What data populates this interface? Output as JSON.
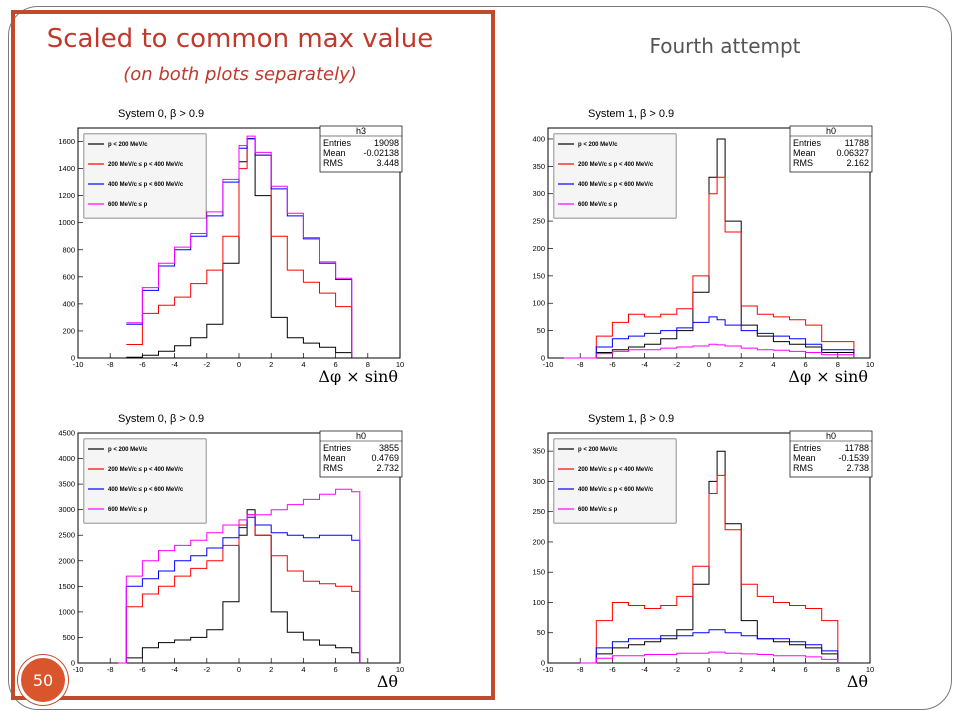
{
  "slide": {
    "left_title": "Scaled to common max value",
    "left_subtitle": "(on both plots separately)",
    "right_title": "Fourth attempt",
    "slide_number": "50"
  },
  "colors": {
    "accent": "#c14a2b",
    "series": [
      "#000000",
      "#ff0000",
      "#0000ff",
      "#ff00ff"
    ]
  },
  "chart_data": [
    {
      "type": "line",
      "title": "System 0, β > 0.9",
      "xlabel": "Δφ × sinθ",
      "ylabel": "",
      "xlim": [
        -10,
        10
      ],
      "ylim": [
        0,
        1700
      ],
      "xticks": [
        -10,
        -8,
        -6,
        -4,
        -2,
        0,
        2,
        4,
        6,
        8,
        10
      ],
      "yticks": [
        0,
        200,
        400,
        600,
        800,
        1000,
        1200,
        1400,
        1600
      ],
      "stats": {
        "name": "h3",
        "entries": "19098",
        "mean": "-0.02138",
        "rms": "3.448"
      },
      "legend": [
        "p < 200 MeV/c",
        "200 MeV/c ≤ p < 400 MeV/c",
        "400 MeV/c ≤ p < 600 MeV/c",
        "600 MeV/c ≤ p"
      ],
      "x": [
        -7,
        -6,
        -5,
        -4,
        -3,
        -2,
        -1,
        0,
        0.5,
        1,
        2,
        3,
        4,
        5,
        6,
        7
      ],
      "series": [
        {
          "name": "p < 200 MeV/c",
          "values": [
            5,
            20,
            50,
            90,
            150,
            250,
            700,
            1450,
            1620,
            1200,
            300,
            150,
            110,
            80,
            40,
            5
          ]
        },
        {
          "name": "200 MeV/c ≤ p < 400 MeV/c",
          "values": [
            100,
            330,
            390,
            450,
            550,
            650,
            900,
            1400,
            1620,
            1500,
            900,
            650,
            560,
            480,
            380,
            5
          ]
        },
        {
          "name": "400 MeV/c ≤ p < 600 MeV/c",
          "values": [
            250,
            500,
            680,
            800,
            900,
            1050,
            1300,
            1550,
            1620,
            1500,
            1250,
            1050,
            880,
            700,
            580,
            5
          ]
        },
        {
          "name": "600 MeV/c ≤ p",
          "values": [
            260,
            520,
            700,
            820,
            920,
            1080,
            1320,
            1570,
            1640,
            1520,
            1270,
            1070,
            890,
            710,
            590,
            5
          ]
        }
      ]
    },
    {
      "type": "line",
      "title": "System 1, β > 0.9",
      "xlabel": "Δφ × sinθ",
      "ylabel": "",
      "xlim": [
        -10,
        10
      ],
      "ylim": [
        0,
        420
      ],
      "xticks": [
        -10,
        -8,
        -6,
        -4,
        -2,
        0,
        2,
        4,
        6,
        8,
        10
      ],
      "yticks": [
        0,
        50,
        100,
        150,
        200,
        250,
        300,
        350,
        400
      ],
      "stats": {
        "name": "h0",
        "entries": "11788",
        "mean": "0.06327",
        "rms": "2.162"
      },
      "legend": [
        "p < 200 MeV/c",
        "200 MeV/c ≤ p < 400 MeV/c",
        "400 MeV/c ≤ p < 600 MeV/c",
        "600 MeV/c ≤ p"
      ],
      "x": [
        -9,
        -7,
        -6,
        -5,
        -4,
        -3,
        -2,
        -1,
        0,
        0.5,
        1,
        2,
        3,
        4,
        5,
        6,
        7,
        9
      ],
      "series": [
        {
          "name": "p < 200 MeV/c",
          "values": [
            0,
            10,
            15,
            20,
            25,
            35,
            50,
            120,
            330,
            400,
            250,
            60,
            40,
            30,
            25,
            20,
            10,
            0
          ]
        },
        {
          "name": "200 MeV/c ≤ p < 400 MeV/c",
          "values": [
            0,
            40,
            65,
            80,
            75,
            80,
            90,
            150,
            300,
            330,
            230,
            95,
            80,
            75,
            70,
            60,
            30,
            0
          ]
        },
        {
          "name": "400 MeV/c ≤ p < 600 MeV/c",
          "values": [
            0,
            20,
            35,
            40,
            45,
            50,
            55,
            65,
            75,
            70,
            60,
            50,
            45,
            40,
            35,
            25,
            15,
            0
          ]
        },
        {
          "name": "600 MeV/c ≤ p",
          "values": [
            0,
            8,
            12,
            15,
            15,
            18,
            20,
            22,
            25,
            24,
            22,
            18,
            15,
            14,
            12,
            10,
            6,
            0
          ]
        }
      ]
    },
    {
      "type": "line",
      "title": "System 0, β > 0.9",
      "xlabel": "Δθ",
      "ylabel": "",
      "xlim": [
        -10,
        10
      ],
      "ylim": [
        0,
        4500
      ],
      "xticks": [
        -10,
        -8,
        -6,
        -4,
        -2,
        0,
        2,
        4,
        6,
        8,
        10
      ],
      "yticks": [
        0,
        500,
        1000,
        1500,
        2000,
        2500,
        3000,
        3500,
        4000,
        4500
      ],
      "stats": {
        "name": "h0",
        "entries": "3855",
        "mean": "0.4769",
        "rms": "2.732"
      },
      "legend": [
        "p < 200 MeV/c",
        "200 MeV/c ≤ p < 400 MeV/c",
        "400 MeV/c ≤ p < 600 MeV/c",
        "600 MeV/c ≤ p"
      ],
      "x": [
        -7.5,
        -7,
        -6,
        -5,
        -4,
        -3,
        -2,
        -1,
        0,
        0.5,
        1,
        2,
        3,
        4,
        5,
        6,
        7,
        7.5
      ],
      "series": [
        {
          "name": "p < 200 MeV/c",
          "values": [
            0,
            100,
            300,
            400,
            450,
            500,
            650,
            1200,
            2500,
            3000,
            2500,
            1000,
            600,
            450,
            350,
            300,
            200,
            0
          ]
        },
        {
          "name": "200 MeV/c ≤ p < 400 MeV/c",
          "values": [
            0,
            1100,
            1350,
            1500,
            1700,
            1850,
            2000,
            2300,
            2700,
            2900,
            2500,
            2100,
            1800,
            1600,
            1550,
            1500,
            1400,
            0
          ]
        },
        {
          "name": "400 MeV/c ≤ p < 600 MeV/c",
          "values": [
            0,
            1500,
            1650,
            1800,
            2000,
            2100,
            2250,
            2450,
            2650,
            2850,
            2700,
            2550,
            2500,
            2450,
            2500,
            2500,
            2400,
            0
          ]
        },
        {
          "name": "600 MeV/c ≤ p",
          "values": [
            0,
            1700,
            2000,
            2200,
            2300,
            2400,
            2550,
            2700,
            2800,
            2900,
            2900,
            3000,
            3100,
            3200,
            3300,
            3400,
            3350,
            0
          ]
        }
      ]
    },
    {
      "type": "line",
      "title": "System 1, β > 0.9",
      "xlabel": "Δθ",
      "ylabel": "",
      "xlim": [
        -10,
        10
      ],
      "ylim": [
        0,
        380
      ],
      "xticks": [
        -10,
        -8,
        -6,
        -4,
        -2,
        0,
        2,
        4,
        6,
        8,
        10
      ],
      "yticks": [
        0,
        50,
        100,
        150,
        200,
        250,
        300,
        350
      ],
      "stats": {
        "name": "h0",
        "entries": "11788",
        "mean": "-0.1539",
        "rms": "2.738"
      },
      "legend": [
        "p < 200 MeV/c",
        "200 MeV/c ≤ p < 400 MeV/c",
        "400 MeV/c ≤ p < 600 MeV/c",
        "600 MeV/c ≤ p"
      ],
      "x": [
        -8,
        -7,
        -6,
        -5,
        -4,
        -3,
        -2,
        -1,
        0,
        0.5,
        1,
        2,
        3,
        4,
        5,
        6,
        7,
        8
      ],
      "series": [
        {
          "name": "p < 200 MeV/c",
          "values": [
            0,
            15,
            25,
            30,
            35,
            40,
            55,
            130,
            300,
            350,
            230,
            70,
            40,
            35,
            30,
            25,
            15,
            0
          ]
        },
        {
          "name": "200 MeV/c ≤ p < 400 MeV/c",
          "values": [
            0,
            70,
            100,
            95,
            90,
            95,
            110,
            160,
            280,
            310,
            220,
            130,
            110,
            100,
            95,
            90,
            70,
            0
          ]
        },
        {
          "name": "400 MeV/c ≤ p < 600 MeV/c",
          "values": [
            0,
            25,
            35,
            40,
            40,
            45,
            45,
            50,
            55,
            55,
            50,
            45,
            40,
            40,
            35,
            30,
            20,
            0
          ]
        },
        {
          "name": "600 MeV/c ≤ p",
          "values": [
            0,
            8,
            12,
            12,
            14,
            14,
            16,
            16,
            18,
            18,
            16,
            15,
            14,
            12,
            12,
            10,
            6,
            0
          ]
        }
      ]
    }
  ]
}
